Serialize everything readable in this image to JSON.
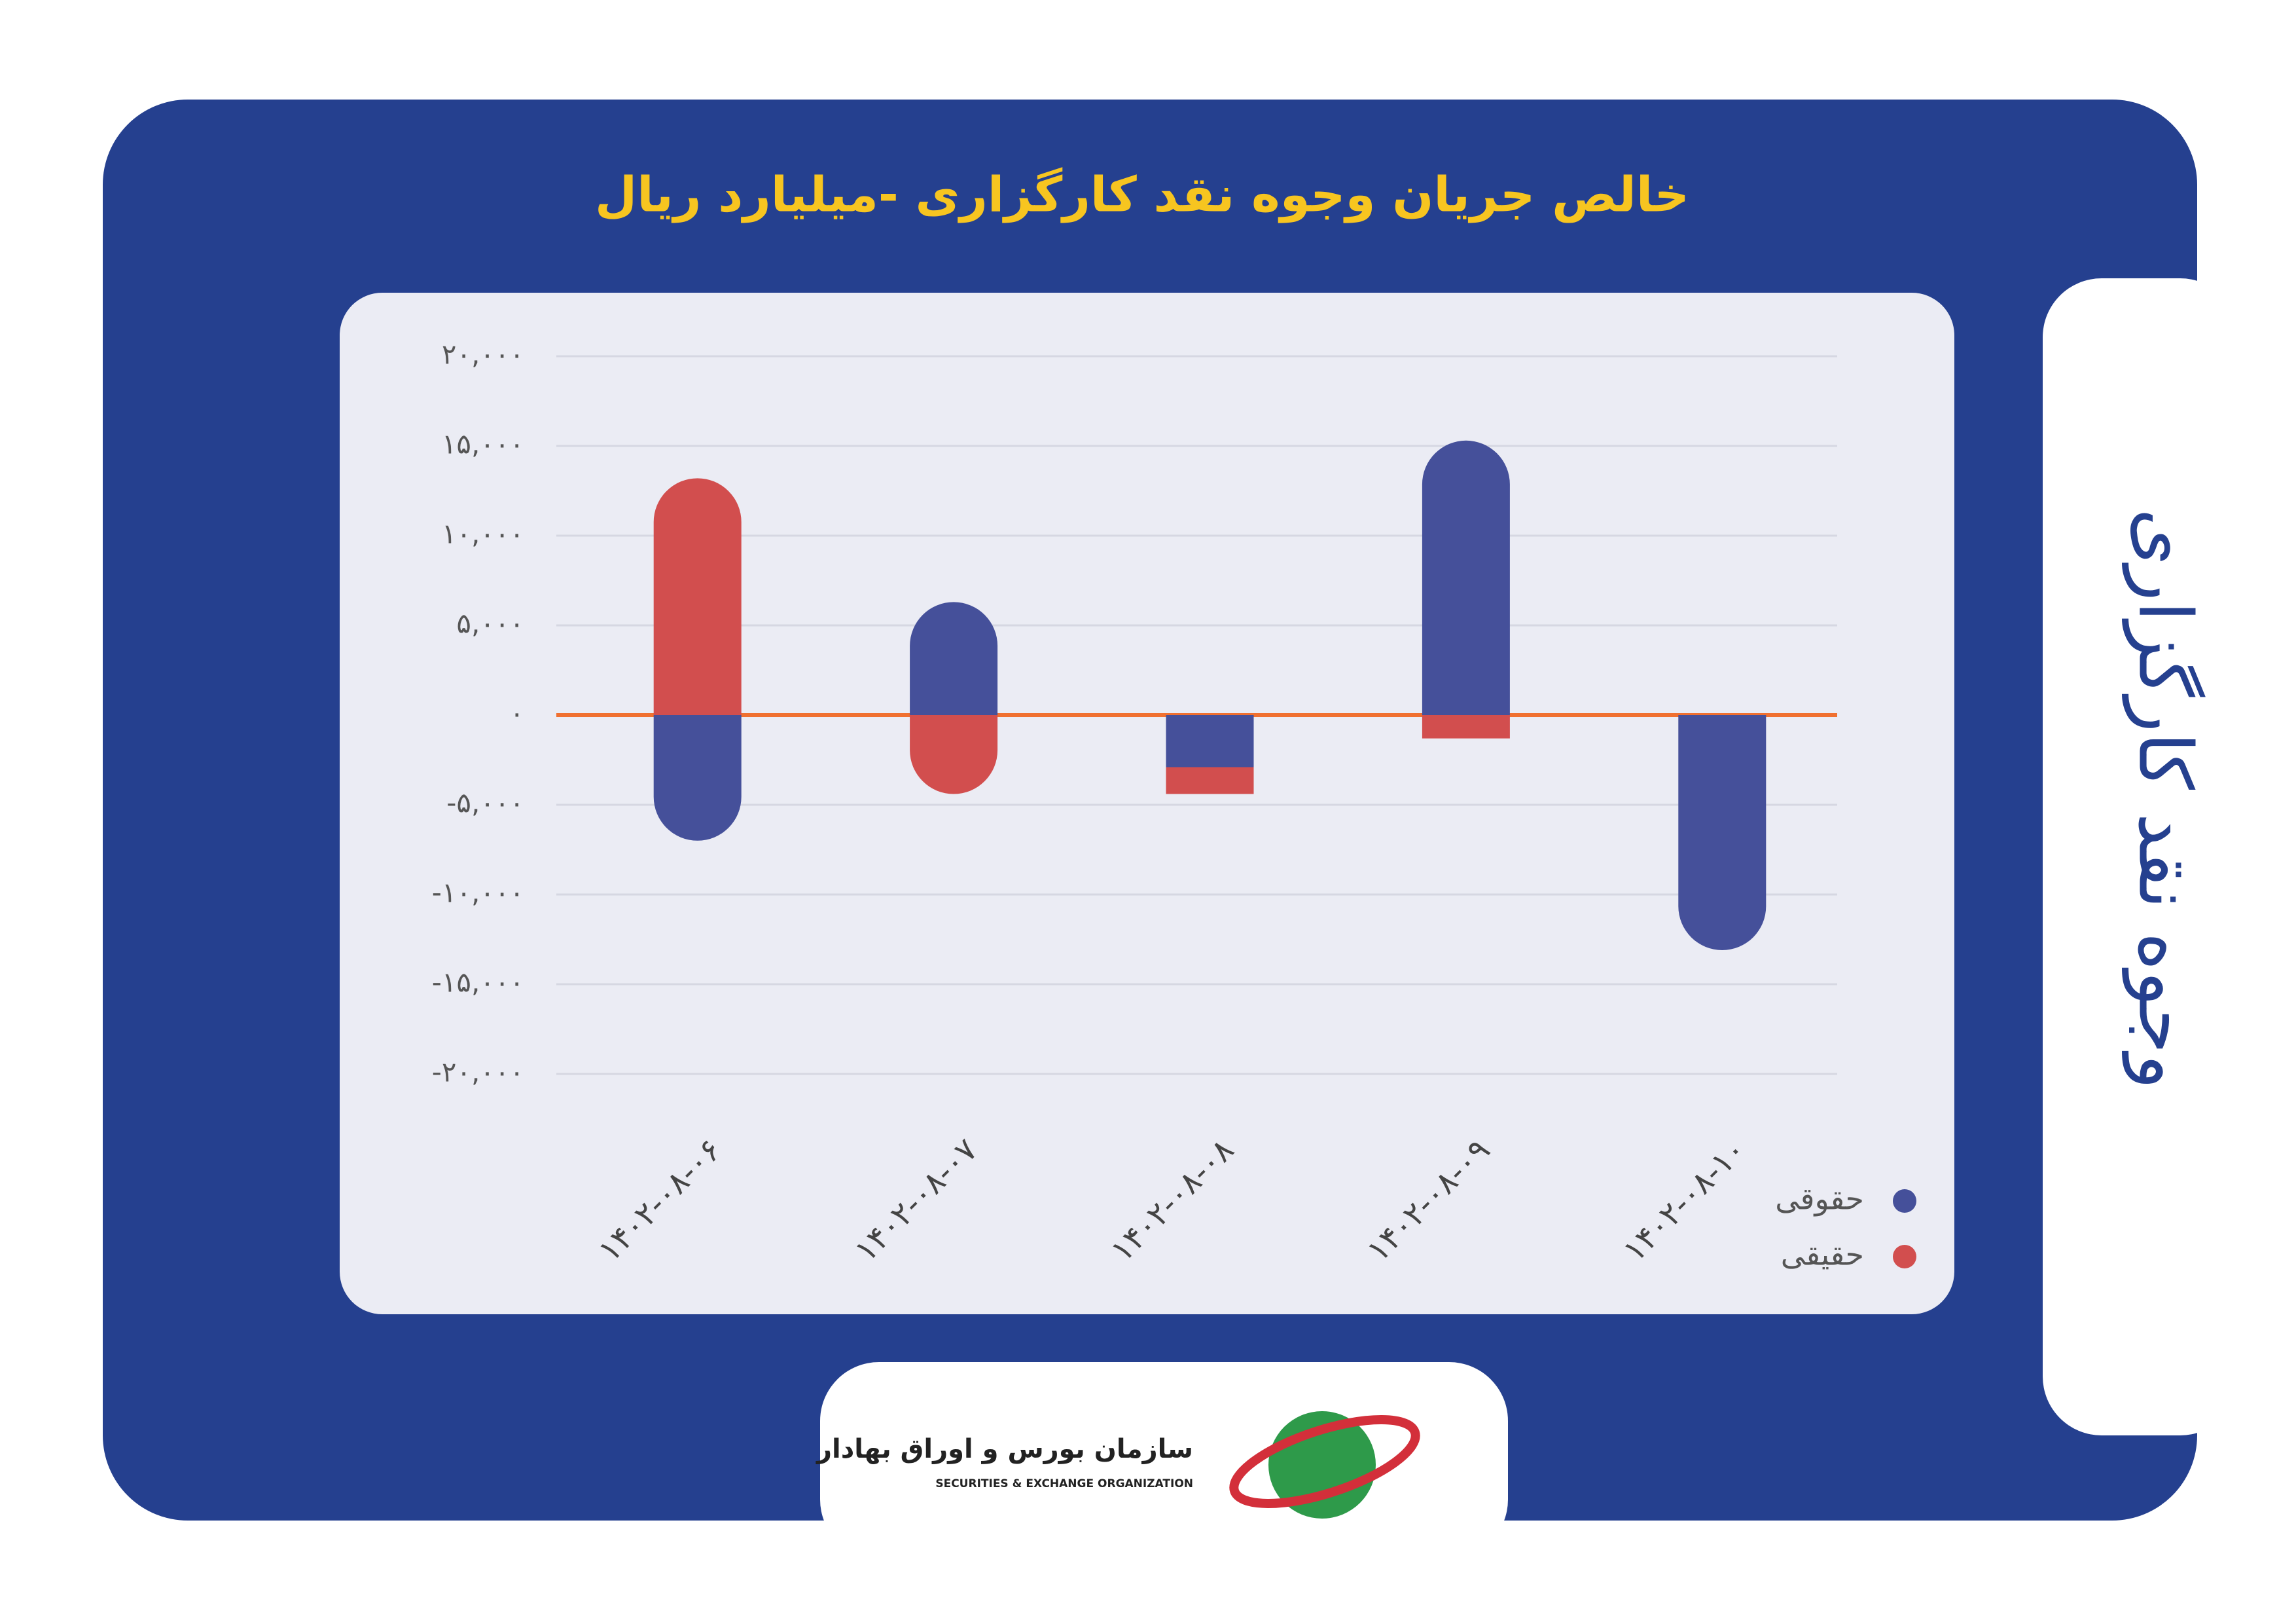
{
  "chart_data": {
    "type": "bar",
    "stacked": true,
    "title": "خالص جریان وجوه نقد کارگزاری -میلیارد ریال",
    "categories": [
      "۱۴۰۲-۰۸-۰۶",
      "۱۴۰۲-۰۸-۰۷",
      "۱۴۰۲-۰۸-۰۸",
      "۱۴۰۲-۰۸-۰۹",
      "۱۴۰۲-۰۸-۱۰"
    ],
    "series": [
      {
        "name": "حقوقی",
        "color": "#45509a",
        "values": [
          -7000,
          6300,
          -2900,
          15300,
          -13100
        ]
      },
      {
        "name": "حقیقی",
        "color": "#d24e4e",
        "values": [
          13200,
          -4400,
          -1500,
          -1300,
          0
        ]
      }
    ],
    "ylim": [
      -20000,
      20000
    ],
    "yticks": [
      {
        "value": -20000,
        "label": "-۲۰,۰۰۰"
      },
      {
        "value": -15000,
        "label": "-۱۵,۰۰۰"
      },
      {
        "value": -10000,
        "label": "-۱۰,۰۰۰"
      },
      {
        "value": -5000,
        "label": "-۵,۰۰۰"
      },
      {
        "value": 0,
        "label": "۰"
      },
      {
        "value": 5000,
        "label": "۵,۰۰۰"
      },
      {
        "value": 10000,
        "label": "۱۰,۰۰۰"
      },
      {
        "value": 15000,
        "label": "۱۵,۰۰۰"
      },
      {
        "value": 20000,
        "label": "۲۰,۰۰۰"
      }
    ],
    "grid": true,
    "legend": "bottom-right"
  },
  "side_title": "وجوه نقد کارگزاری",
  "logo": {
    "name": "سازمان بورس و اوراق بهادار",
    "name_en": "SECURITIES & EXCHANGE ORGANIZATION"
  }
}
